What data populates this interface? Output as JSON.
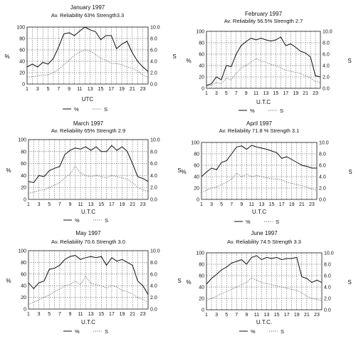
{
  "figure": {
    "left_axis_label": "%",
    "right_axis_label": "S"
  },
  "chart_data": [
    {
      "type": "line",
      "title": "January 1997",
      "subtitle": "Av. Reliability 63% Strength3.3",
      "xlabel": "UTC",
      "x": [
        1,
        2,
        3,
        4,
        5,
        6,
        7,
        8,
        9,
        10,
        11,
        12,
        13,
        14,
        15,
        16,
        17,
        18,
        19,
        20,
        21,
        22,
        23,
        24
      ],
      "ylim": [
        0,
        100
      ],
      "y2lim": [
        0,
        10
      ],
      "xticks": [
        1,
        3,
        5,
        7,
        9,
        11,
        13,
        15,
        17,
        19,
        21,
        23
      ],
      "yticks": [
        0,
        20,
        40,
        60,
        80,
        100
      ],
      "y2ticks": [
        "0.0",
        "2.0",
        "4.0",
        "6.0",
        "8.0",
        "10.0"
      ],
      "legend_entries": [
        "%",
        "S"
      ],
      "legend_position": "bottom",
      "series": [
        {
          "name": "%",
          "axis": "left",
          "style": "solid",
          "values": [
            30,
            35,
            30,
            38,
            35,
            45,
            65,
            88,
            90,
            85,
            93,
            100,
            95,
            92,
            78,
            85,
            85,
            62,
            70,
            75,
            55,
            40,
            30,
            22
          ]
        },
        {
          "name": "S",
          "axis": "right",
          "style": "dotted",
          "values": [
            1.2,
            1.3,
            1.4,
            1.6,
            1.6,
            2.0,
            2.6,
            3.4,
            4.2,
            5.0,
            5.6,
            6.0,
            5.8,
            5.2,
            4.5,
            4.2,
            3.6,
            3.6,
            3.4,
            3.0,
            2.8,
            2.3,
            1.6,
            1.2
          ]
        }
      ]
    },
    {
      "type": "line",
      "title": "February 1997",
      "subtitle": "Av. Reliability 56.5% Strength 2.7",
      "xlabel": "U.T.C",
      "x": [
        1,
        2,
        3,
        4,
        5,
        6,
        7,
        8,
        9,
        10,
        11,
        12,
        13,
        14,
        15,
        16,
        17,
        18,
        19,
        20,
        21,
        22,
        23,
        24
      ],
      "ylim": [
        0,
        100
      ],
      "y2lim": [
        0,
        10
      ],
      "xticks": [
        1,
        3,
        5,
        7,
        9,
        11,
        13,
        15,
        17,
        19,
        21,
        23
      ],
      "yticks": [
        0,
        20,
        40,
        60,
        80,
        100
      ],
      "y2ticks": [
        "0.0",
        "2.0",
        "4.0",
        "6.0",
        "8.0",
        "10.0"
      ],
      "legend_entries": [
        "%",
        "S"
      ],
      "legend_position": "bottom",
      "series": [
        {
          "name": "%",
          "axis": "left",
          "style": "solid",
          "values": [
            5,
            8,
            20,
            15,
            40,
            38,
            60,
            75,
            82,
            88,
            85,
            88,
            85,
            83,
            85,
            90,
            75,
            78,
            72,
            65,
            62,
            55,
            22,
            20
          ]
        },
        {
          "name": "S",
          "axis": "right",
          "style": "dotted",
          "values": [
            0.3,
            0.5,
            1.0,
            0.8,
            1.8,
            1.5,
            2.6,
            3.6,
            4.0,
            4.6,
            5.2,
            4.8,
            4.6,
            4.2,
            4.0,
            3.6,
            3.2,
            3.0,
            2.8,
            2.6,
            2.2,
            1.8,
            1.2,
            1.0
          ]
        }
      ]
    },
    {
      "type": "line",
      "title": "March 1997",
      "subtitle": "Av. Reliability 65% Strength 2.9",
      "xlabel": "U.T.C",
      "x": [
        1,
        2,
        3,
        4,
        5,
        6,
        7,
        8,
        9,
        10,
        11,
        12,
        13,
        14,
        15,
        16,
        17,
        18,
        19,
        20,
        21,
        22,
        23,
        24
      ],
      "ylim": [
        0,
        100
      ],
      "y2lim": [
        0,
        10
      ],
      "xticks": [
        1,
        3,
        5,
        7,
        9,
        11,
        13,
        15,
        17,
        19,
        21,
        23
      ],
      "yticks": [
        0,
        20,
        40,
        60,
        80,
        100
      ],
      "y2ticks": [
        "0.0",
        "2.0",
        "4.0",
        "6.0",
        "8.0",
        "10.0"
      ],
      "legend_entries": [
        "%",
        "S"
      ],
      "legend_position": "bottom",
      "series": [
        {
          "name": "%",
          "axis": "left",
          "style": "solid",
          "values": [
            30,
            28,
            40,
            38,
            48,
            52,
            55,
            75,
            82,
            86,
            84,
            88,
            82,
            88,
            80,
            80,
            90,
            82,
            88,
            80,
            60,
            38,
            35,
            30
          ]
        },
        {
          "name": "S",
          "axis": "right",
          "style": "dotted",
          "values": [
            1.0,
            1.2,
            1.5,
            1.6,
            2.0,
            2.4,
            2.8,
            3.6,
            4.2,
            5.6,
            4.4,
            4.0,
            3.8,
            4.0,
            3.8,
            3.6,
            4.0,
            3.8,
            3.6,
            3.4,
            2.8,
            2.0,
            1.6,
            1.4
          ]
        }
      ]
    },
    {
      "type": "line",
      "title": "April 1997",
      "subtitle": "Av. Reliability 71.8 % Strength 3.1",
      "xlabel": "U.T.C",
      "x": [
        1,
        2,
        3,
        4,
        5,
        6,
        7,
        8,
        9,
        10,
        11,
        12,
        13,
        14,
        15,
        16,
        17,
        18,
        19,
        20,
        21,
        22,
        23,
        24
      ],
      "ylim": [
        0,
        100
      ],
      "y2lim": [
        0,
        10
      ],
      "xticks": [
        1,
        3,
        5,
        7,
        9,
        11,
        13,
        15,
        17,
        19,
        21,
        23
      ],
      "yticks": [
        0,
        20,
        40,
        60,
        80,
        100
      ],
      "y2ticks": [
        "0.0",
        "2.0",
        "4.0",
        "6.0",
        "8.0",
        "10.0"
      ],
      "legend_entries": [
        "%",
        "S"
      ],
      "legend_position": "bottom",
      "series": [
        {
          "name": "%",
          "axis": "left",
          "style": "solid",
          "values": [
            40,
            48,
            55,
            52,
            65,
            68,
            80,
            92,
            94,
            88,
            95,
            92,
            90,
            88,
            85,
            82,
            72,
            75,
            70,
            65,
            60,
            58,
            55,
            55
          ]
        },
        {
          "name": "S",
          "axis": "right",
          "style": "dotted",
          "values": [
            1.2,
            1.6,
            2.0,
            2.2,
            2.6,
            3.0,
            3.6,
            4.6,
            4.0,
            4.4,
            4.0,
            4.2,
            4.0,
            3.8,
            3.6,
            3.6,
            3.4,
            3.0,
            2.8,
            2.6,
            2.4,
            2.2,
            1.8,
            1.6
          ]
        }
      ]
    },
    {
      "type": "line",
      "title": "May 1997",
      "subtitle": "Av. Reliability 70.6 Strength 3.0",
      "xlabel": "U.T.C",
      "x": [
        1,
        2,
        3,
        4,
        5,
        6,
        7,
        8,
        9,
        10,
        11,
        12,
        13,
        14,
        15,
        16,
        17,
        18,
        19,
        20,
        21,
        22,
        23,
        24
      ],
      "ylim": [
        0,
        100
      ],
      "y2lim": [
        0,
        10
      ],
      "xticks": [
        1,
        3,
        5,
        7,
        9,
        11,
        13,
        15,
        17,
        19,
        21,
        23
      ],
      "yticks": [
        0,
        20,
        40,
        60,
        80,
        100
      ],
      "y2ticks": [
        "0.0",
        "2.0",
        "4.0",
        "6.0",
        "8.0",
        "10.0"
      ],
      "legend_entries": [
        "%",
        "S"
      ],
      "legend_position": "bottom",
      "series": [
        {
          "name": "%",
          "axis": "left",
          "style": "solid",
          "values": [
            45,
            35,
            45,
            48,
            68,
            70,
            75,
            85,
            90,
            92,
            85,
            88,
            90,
            88,
            90,
            75,
            88,
            82,
            85,
            80,
            75,
            48,
            40,
            25
          ]
        },
        {
          "name": "S",
          "axis": "right",
          "style": "dotted",
          "values": [
            0.8,
            1.2,
            1.6,
            2.0,
            2.4,
            3.0,
            3.4,
            4.0,
            4.2,
            4.8,
            4.2,
            5.6,
            4.4,
            4.2,
            4.0,
            3.6,
            4.0,
            3.8,
            3.2,
            3.0,
            2.6,
            2.0,
            1.6,
            1.2
          ]
        }
      ]
    },
    {
      "type": "line",
      "title": "June 1997",
      "subtitle": "Av. Reliability 74.5 Strength 3.3",
      "xlabel": "U.T.C.",
      "x": [
        1,
        2,
        3,
        4,
        5,
        6,
        7,
        8,
        9,
        10,
        11,
        12,
        13,
        14,
        15,
        16,
        17,
        18,
        19,
        20,
        21,
        22,
        23,
        24
      ],
      "ylim": [
        0,
        100
      ],
      "y2lim": [
        0,
        10
      ],
      "xticks": [
        1,
        3,
        5,
        7,
        9,
        11,
        13,
        15,
        17,
        19,
        21,
        23
      ],
      "yticks": [
        0,
        20,
        40,
        60,
        80,
        100
      ],
      "y2ticks": [
        "0.0",
        "2.0",
        "4.0",
        "6.0",
        "8.0",
        "10.0"
      ],
      "legend_entries": [
        "%",
        "S"
      ],
      "legend_position": "bottom",
      "series": [
        {
          "name": "%",
          "axis": "left",
          "style": "solid",
          "values": [
            45,
            55,
            62,
            70,
            75,
            82,
            85,
            88,
            80,
            92,
            95,
            88,
            92,
            90,
            92,
            88,
            90,
            90,
            92,
            58,
            55,
            48,
            52,
            48
          ]
        },
        {
          "name": "S",
          "axis": "right",
          "style": "dotted",
          "values": [
            1.6,
            2.0,
            2.4,
            2.8,
            3.2,
            3.6,
            4.0,
            4.4,
            4.8,
            5.6,
            5.2,
            4.8,
            4.6,
            4.4,
            4.2,
            4.0,
            3.8,
            3.6,
            3.4,
            3.0,
            2.4,
            2.0,
            1.8,
            1.6
          ]
        }
      ]
    }
  ]
}
